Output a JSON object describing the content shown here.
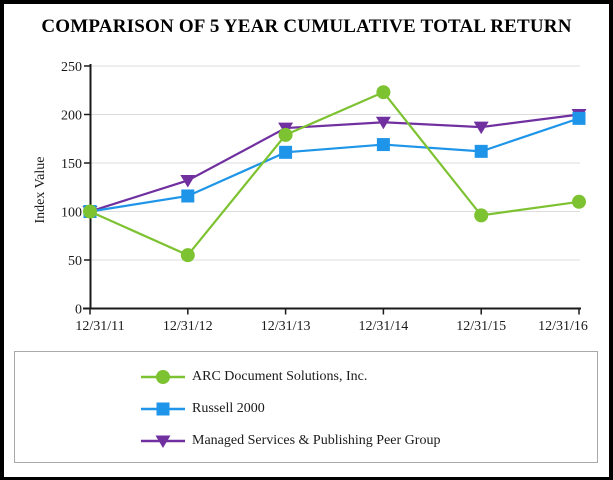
{
  "page": {
    "title": "COMPARISON OF 5 YEAR CUMULATIVE TOTAL RETURN"
  },
  "chart_data": {
    "type": "line",
    "title": "COMPARISON OF 5 YEAR CUMULATIVE TOTAL RETURN",
    "xlabel": "",
    "ylabel": "Index Value",
    "categories": [
      "12/31/11",
      "12/31/12",
      "12/31/13",
      "12/31/14",
      "12/31/15",
      "12/31/16"
    ],
    "y_ticks": [
      0,
      50,
      100,
      150,
      200,
      250
    ],
    "ylim": [
      0,
      250
    ],
    "grid": "horizontal",
    "legend_position": "bottom-box",
    "series": [
      {
        "name": "ARC Document Solutions, Inc.",
        "marker": "circle",
        "color": "#7dc230",
        "values": [
          100,
          55,
          179,
          223,
          96,
          110
        ]
      },
      {
        "name": "Russell 2000",
        "marker": "square",
        "color": "#1e95e8",
        "values": [
          100,
          116,
          161,
          169,
          162,
          196
        ]
      },
      {
        "name": "Managed Services & Publishing Peer Group",
        "marker": "triangle-down",
        "color": "#7030a0",
        "values": [
          100,
          132,
          186,
          192,
          187,
          200
        ]
      }
    ],
    "colors": {
      "grid": "#dcdcdc",
      "axis": "#1a1a1a",
      "text": "#000000",
      "legend_border": "#a9a9a9",
      "frame": "#000000"
    }
  }
}
